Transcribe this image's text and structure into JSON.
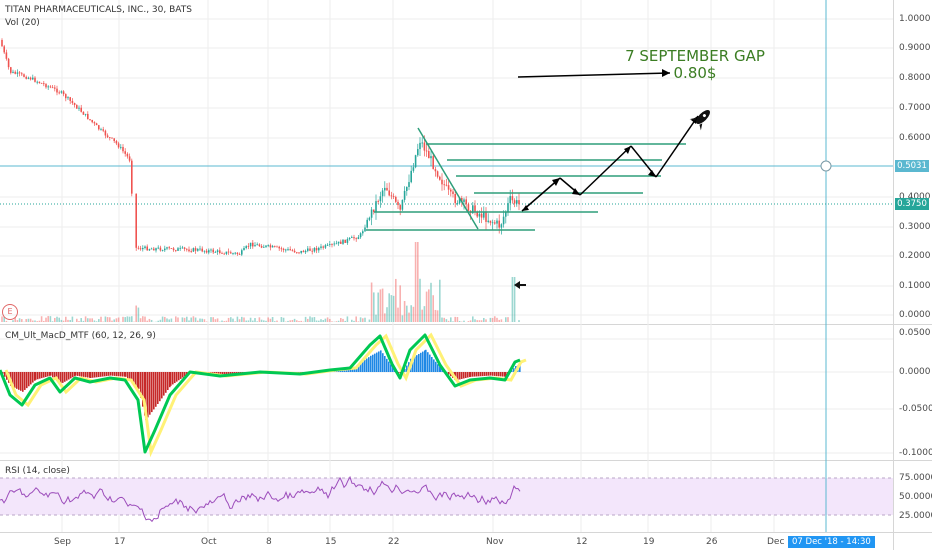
{
  "header": {
    "symbol_line": "TITAN PHARMACEUTICALS, INC., 30, BATS",
    "volume_label": "Vol (20)"
  },
  "indicators": {
    "macd_label": "CM_Ult_MacD_MTF (60, 12, 26, 9)",
    "rsi_label": "RSI (14, close)"
  },
  "annotation": {
    "line1": "7 SEPTEMBER GAP",
    "line2": "0.80$"
  },
  "earnings_badge": "E",
  "price_axis": {
    "ticks": [
      "1.0000",
      "0.9000",
      "0.8000",
      "0.7000",
      "0.6000",
      "0.5000",
      "0.4000",
      "0.3000",
      "0.2000",
      "0.1000",
      "0.0000"
    ],
    "highlight_price": "0.5031",
    "last_price": "0.3750"
  },
  "macd_axis": {
    "ticks": [
      "0.0500",
      "0.0000",
      "-0.0500",
      "-0.1000"
    ]
  },
  "rsi_axis": {
    "ticks": [
      "75.0000",
      "50.0000",
      "25.0000"
    ]
  },
  "time_axis": {
    "ticks": [
      "Sep",
      "17",
      "Oct",
      "8",
      "15",
      "22",
      "Nov",
      "12",
      "19",
      "26",
      "Dec"
    ],
    "cursor_date": "07 Dec '18 - 14:30"
  },
  "colors": {
    "up": "#26a69a",
    "down": "#ef5350",
    "crosshair": "#5bb8d0",
    "channel": "#2e9e7a",
    "annotation": "#3b7d23",
    "macd_up": "#00c853",
    "macd_down": "#c62828",
    "rsi_line": "#9c4dbb",
    "rsi_band": "#f3e6fb",
    "price_tag_highlight": "#5bb8d0",
    "price_tag_last": "#26a69a"
  },
  "icons": [
    "rocket-icon",
    "left-arrow-icon",
    "crosshair-circle-icon"
  ]
}
